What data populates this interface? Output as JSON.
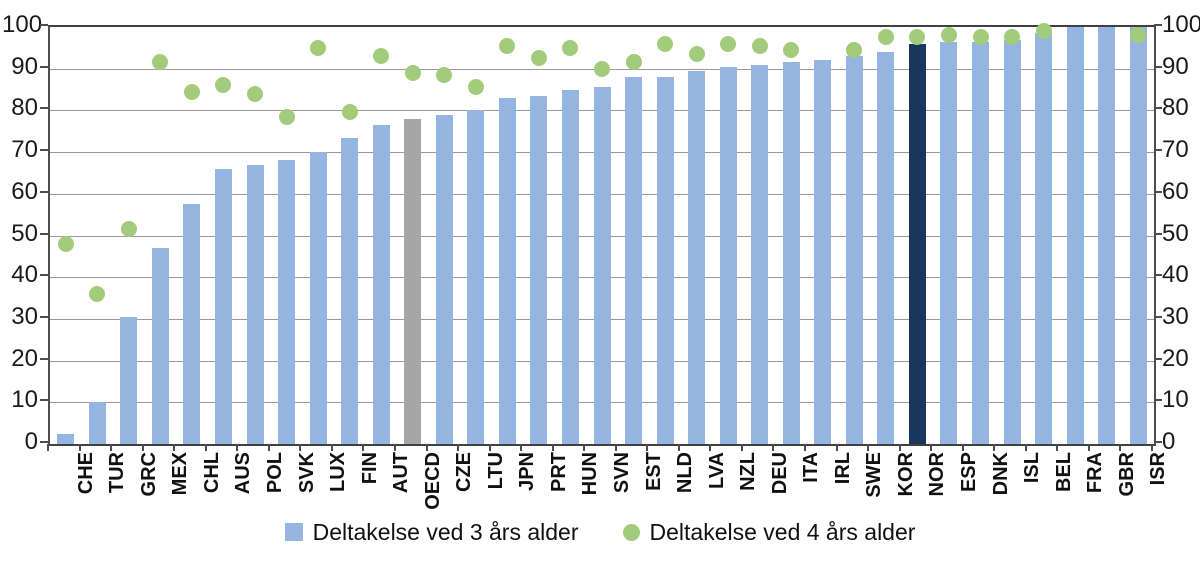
{
  "colors": {
    "bar_blue": "#93B5DF",
    "bar_gray": "#A6A6A6",
    "bar_navy": "#17375E",
    "dot_green": "#A3CB7C",
    "gridline": "#9a9a9a",
    "frame": "#404040"
  },
  "legend": {
    "bars_label": "Deltakelse ved 3 års alder",
    "dots_label": "Deltakelse ved 4 års alder"
  },
  "axis": {
    "y_ticks": [
      0,
      10,
      20,
      30,
      40,
      50,
      60,
      70,
      80,
      90,
      100
    ],
    "y_min": 0,
    "y_max": 100,
    "dual_axis": true,
    "grid": true
  },
  "chart_data": {
    "type": "bar",
    "title": "",
    "xlabel": "",
    "ylabel": "",
    "ylim": [
      0,
      100
    ],
    "legend_position": "bottom",
    "categories": [
      "CHE",
      "TUR",
      "GRC",
      "MEX",
      "CHL",
      "AUS",
      "POL",
      "SVK",
      "LUX",
      "FIN",
      "AUT",
      "OECD",
      "CZE",
      "LTU",
      "JPN",
      "PRT",
      "HUN",
      "SVN",
      "EST",
      "NLD",
      "LVA",
      "NZL",
      "DEU",
      "ITA",
      "IRL",
      "SWE",
      "KOR",
      "NOR",
      "ESP",
      "DNK",
      "ISL",
      "BEL",
      "FRA",
      "GBR",
      "ISR"
    ],
    "highlight_gray_category": "OECD",
    "highlight_navy_category": "NOR",
    "series": [
      {
        "name": "Deltakelse ved 3 års alder",
        "type": "bar",
        "values": [
          2.5,
          10,
          30.5,
          47,
          57.5,
          66,
          67,
          68,
          70,
          73.5,
          76.5,
          78,
          79,
          80,
          83,
          83.5,
          85,
          85.5,
          88,
          88,
          89.5,
          90.5,
          91,
          91.5,
          92,
          93,
          94,
          96,
          96.5,
          96.5,
          97,
          98.5,
          100,
          100,
          100
        ]
      },
      {
        "name": "Deltakelse ved 4 års alder",
        "type": "scatter",
        "values": [
          48,
          36,
          51.5,
          91.5,
          84.5,
          86,
          84,
          78.5,
          95,
          79.5,
          93,
          89,
          88.5,
          85.5,
          95.5,
          92.5,
          95,
          90,
          91.5,
          96,
          93.5,
          96,
          95.5,
          94.5,
          null,
          94.5,
          97.5,
          97.5,
          98,
          97.5,
          97.5,
          99,
          null,
          null,
          98
        ]
      }
    ]
  }
}
